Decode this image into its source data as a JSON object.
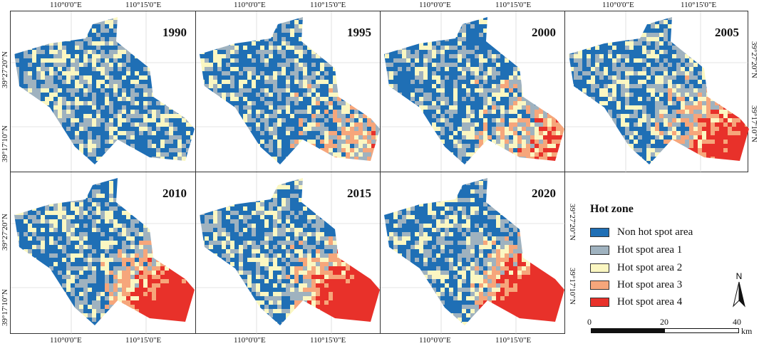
{
  "panels": [
    {
      "year": "1990"
    },
    {
      "year": "1995"
    },
    {
      "year": "2000"
    },
    {
      "year": "2005"
    },
    {
      "year": "2010"
    },
    {
      "year": "2015"
    },
    {
      "year": "2020"
    }
  ],
  "axis_labels": {
    "lon_west": "110°0'0\"E",
    "lon_east": "110°15'0\"E",
    "lat_north": "39°27'20\"N",
    "lat_south": "39°17'10\"N"
  },
  "legend": {
    "title": "Hot zone",
    "items": [
      {
        "label": "Non hot spot area",
        "color": "#1f6fb5"
      },
      {
        "label": "Hot spot area 1",
        "color": "#9fb2bf"
      },
      {
        "label": "Hot spot area 2",
        "color": "#fbf7c2"
      },
      {
        "label": "Hot spot area 3",
        "color": "#f6a67b"
      },
      {
        "label": "Hot spot area 4",
        "color": "#e8312a"
      }
    ]
  },
  "north_arrow": {
    "label": "N"
  },
  "scale_bar": {
    "ticks": [
      "0",
      "20",
      "40"
    ],
    "unit": "km"
  }
}
